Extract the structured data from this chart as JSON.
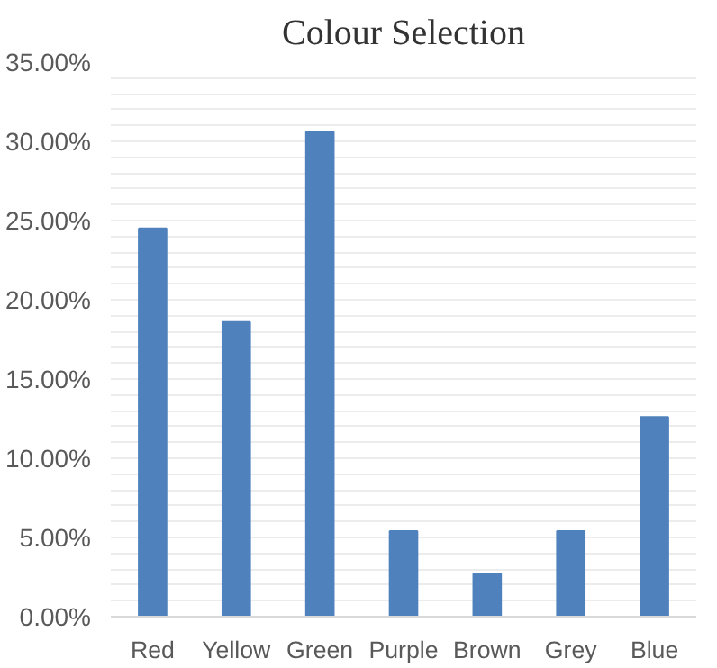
{
  "chart_data": {
    "type": "bar",
    "title": "Colour Selection",
    "categories": [
      "Red",
      "Yellow",
      "Green",
      "Purple",
      "Brown",
      "Grey",
      "Blue"
    ],
    "values": [
      24.5,
      18.6,
      30.6,
      5.4,
      2.7,
      5.4,
      12.6
    ],
    "color": "#4f81bd",
    "ylim": [
      0,
      35
    ],
    "yticks": [
      {
        "value": 0,
        "label": "0.00%"
      },
      {
        "value": 1,
        "label": null
      },
      {
        "value": 2,
        "label": null
      },
      {
        "value": 3,
        "label": null
      },
      {
        "value": 4,
        "label": null
      },
      {
        "value": 5,
        "label": "5.00%"
      },
      {
        "value": 6,
        "label": null
      },
      {
        "value": 7,
        "label": null
      },
      {
        "value": 8,
        "label": null
      },
      {
        "value": 9,
        "label": null
      },
      {
        "value": 10,
        "label": "10.00%"
      },
      {
        "value": 11,
        "label": null
      },
      {
        "value": 12,
        "label": null
      },
      {
        "value": 13,
        "label": null
      },
      {
        "value": 14,
        "label": null
      },
      {
        "value": 15,
        "label": "15.00%"
      },
      {
        "value": 16,
        "label": null
      },
      {
        "value": 17,
        "label": null
      },
      {
        "value": 18,
        "label": null
      },
      {
        "value": 19,
        "label": null
      },
      {
        "value": 20,
        "label": "20.00%"
      },
      {
        "value": 21,
        "label": null
      },
      {
        "value": 22,
        "label": null
      },
      {
        "value": 23,
        "label": null
      },
      {
        "value": 24,
        "label": null
      },
      {
        "value": 25,
        "label": "25.00%"
      },
      {
        "value": 26,
        "label": null
      },
      {
        "value": 27,
        "label": null
      },
      {
        "value": 28,
        "label": null
      },
      {
        "value": 29,
        "label": null
      },
      {
        "value": 30,
        "label": "30.00%"
      },
      {
        "value": 31,
        "label": null
      },
      {
        "value": 32,
        "label": null
      },
      {
        "value": 33,
        "label": null
      },
      {
        "value": 34,
        "label": null
      },
      {
        "value": 35,
        "label": "35.00%"
      }
    ],
    "grid": "y"
  }
}
